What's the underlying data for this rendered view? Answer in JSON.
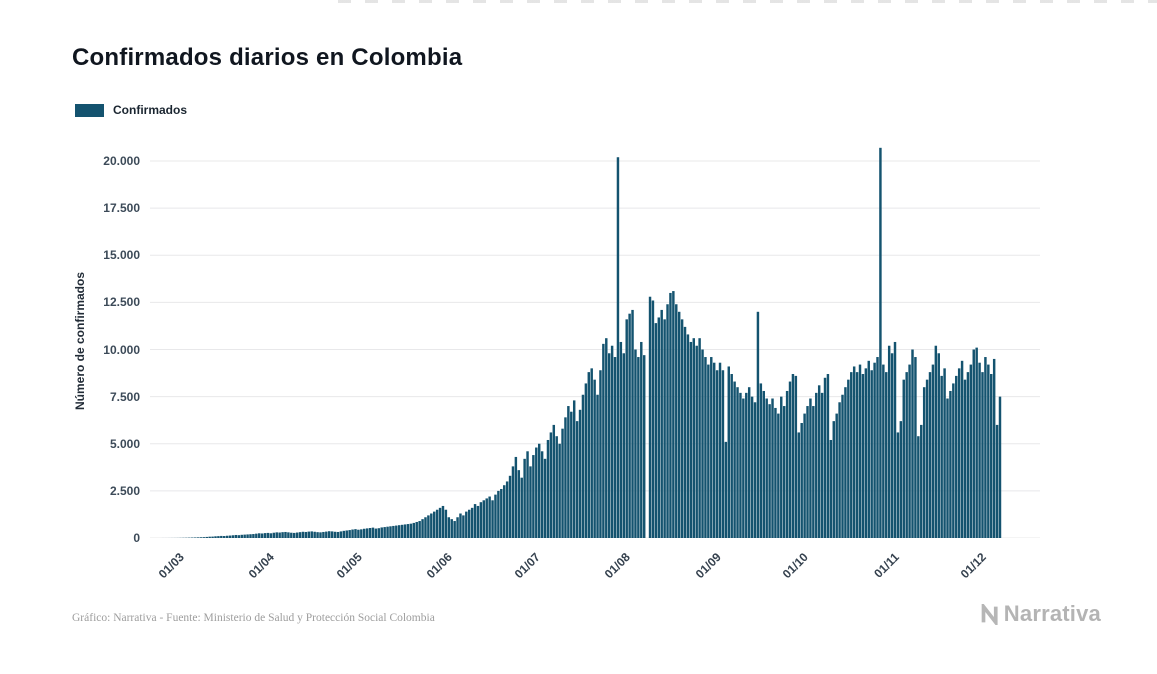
{
  "chart_data": {
    "type": "bar",
    "title": "Confirmados diarios en Colombia",
    "ylabel": "Número de confirmados",
    "xlabel": "",
    "legend": [
      "Confirmados"
    ],
    "legend_position": "top-left",
    "grid": true,
    "bar_color": "#14536f",
    "gridline_color": "#e8e8ea",
    "ylim": [
      0,
      20850
    ],
    "y_ticks": [
      {
        "value": 0,
        "label": "0"
      },
      {
        "value": 2500,
        "label": "2.500"
      },
      {
        "value": 5000,
        "label": "5.000"
      },
      {
        "value": 7500,
        "label": "7.500"
      },
      {
        "value": 10000,
        "label": "10.000"
      },
      {
        "value": 12500,
        "label": "12.500"
      },
      {
        "value": 15000,
        "label": "15.000"
      },
      {
        "value": 17500,
        "label": "17.500"
      },
      {
        "value": 20000,
        "label": "20.000"
      }
    ],
    "x_ticks": [
      {
        "index": 0,
        "label": "01/03"
      },
      {
        "index": 31,
        "label": "01/04"
      },
      {
        "index": 61,
        "label": "01/05"
      },
      {
        "index": 92,
        "label": "01/06"
      },
      {
        "index": 122,
        "label": "01/07"
      },
      {
        "index": 153,
        "label": "01/08"
      },
      {
        "index": 184,
        "label": "01/09"
      },
      {
        "index": 214,
        "label": "01/10"
      },
      {
        "index": 245,
        "label": "01/11"
      },
      {
        "index": 275,
        "label": "01/12"
      }
    ],
    "values": [
      1,
      1,
      2,
      3,
      4,
      6,
      9,
      12,
      15,
      19,
      24,
      28,
      34,
      40,
      45,
      57,
      70,
      75,
      90,
      100,
      110,
      105,
      120,
      130,
      145,
      160,
      150,
      170,
      180,
      190,
      200,
      210,
      230,
      250,
      240,
      260,
      270,
      250,
      280,
      300,
      290,
      310,
      320,
      300,
      280,
      270,
      290,
      310,
      330,
      320,
      340,
      350,
      330,
      310,
      300,
      320,
      340,
      360,
      350,
      330,
      320,
      350,
      380,
      400,
      420,
      450,
      470,
      440,
      460,
      490,
      510,
      530,
      550,
      500,
      520,
      560,
      580,
      600,
      620,
      640,
      660,
      680,
      700,
      720,
      740,
      760,
      800,
      850,
      900,
      1000,
      1100,
      1200,
      1300,
      1400,
      1500,
      1600,
      1700,
      1500,
      1100,
      1000,
      900,
      1100,
      1300,
      1200,
      1400,
      1500,
      1600,
      1800,
      1700,
      1900,
      2000,
      2100,
      2200,
      2000,
      2300,
      2500,
      2600,
      2800,
      3000,
      3300,
      3800,
      4300,
      3600,
      3200,
      4200,
      4600,
      3800,
      4400,
      4800,
      5000,
      4600,
      4200,
      5200,
      5600,
      6000,
      5400,
      5000,
      5800,
      6400,
      7000,
      6700,
      7300,
      6200,
      6800,
      7600,
      8200,
      8800,
      9000,
      8400,
      7600,
      8900,
      10300,
      10600,
      9800,
      10200,
      9600,
      20200,
      10400,
      9800,
      11600,
      11900,
      12100,
      10000,
      9600,
      10400,
      9700,
      0,
      12800,
      12600,
      11400,
      11700,
      12100,
      11600,
      12400,
      13000,
      13100,
      12400,
      12000,
      11600,
      11200,
      10800,
      10400,
      10600,
      10200,
      10600,
      10000,
      9600,
      9200,
      9600,
      9300,
      8900,
      9300,
      8900,
      5100,
      9100,
      8700,
      8300,
      8000,
      7700,
      7400,
      7700,
      8000,
      7500,
      7200,
      12000,
      8200,
      7800,
      7400,
      7100,
      7400,
      6900,
      6600,
      7500,
      7000,
      7800,
      8300,
      8700,
      8600,
      5600,
      6100,
      6600,
      7000,
      7400,
      7000,
      7700,
      8100,
      7700,
      8500,
      8700,
      5200,
      6200,
      6600,
      7200,
      7600,
      8000,
      8400,
      8800,
      9100,
      8800,
      9200,
      8700,
      9000,
      9400,
      8900,
      9300,
      9600,
      20700,
      9200,
      8800,
      10200,
      9800,
      10400,
      5600,
      6200,
      8400,
      8800,
      9200,
      10000,
      9600,
      5400,
      6000,
      8000,
      8400,
      8800,
      9200,
      10200,
      9800,
      8600,
      9000,
      7400,
      7800,
      8200,
      8600,
      9000,
      9400,
      8400,
      8800,
      9200,
      10000,
      10100,
      9300,
      8800,
      9600,
      9200,
      8700,
      9500,
      6000,
      7500
    ]
  },
  "footer": {
    "credit": "Gráfico: Narrativa - Fuente: Ministerio de Salud y Protección Social Colombia",
    "brand": "Narrativa"
  }
}
